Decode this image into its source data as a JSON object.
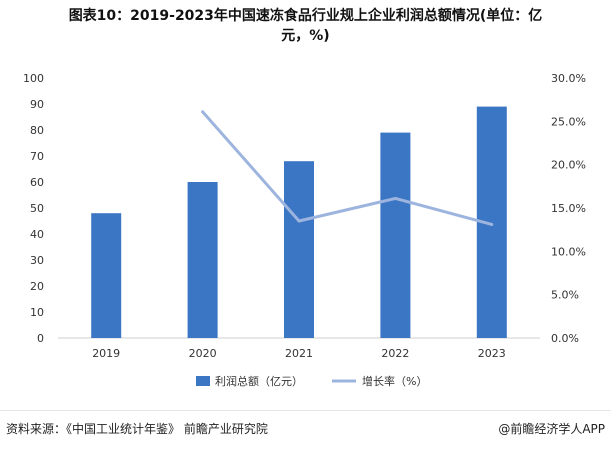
{
  "title_line1": "图表10：2019-2023年中国速冻食品行业规上企业利润总额情况(单位：亿",
  "title_line2": "元，%)",
  "source_text": "资料来源：《中国工业统计年鉴》 前瞻产业研究院",
  "credit_text": "@前瞻经济学人APP",
  "chart_data": {
    "type": "bar",
    "categories": [
      "2019",
      "2020",
      "2021",
      "2022",
      "2023"
    ],
    "series": [
      {
        "name": "利润总额（亿元）",
        "type": "bar",
        "axis": "left",
        "color": "#3b76c4",
        "values": [
          48,
          60,
          68,
          79,
          89
        ]
      },
      {
        "name": "增长率（%）",
        "type": "line",
        "axis": "right",
        "color": "#9db4df",
        "values": [
          null,
          26.1,
          13.5,
          16.1,
          13.1
        ]
      }
    ],
    "ylim_left": [
      0,
      100
    ],
    "yticks_left": [
      "0",
      "10",
      "20",
      "30",
      "40",
      "50",
      "60",
      "70",
      "80",
      "90",
      "100"
    ],
    "ylim_right": [
      0,
      30
    ],
    "yticks_right": [
      "0.0%",
      "5.0%",
      "10.0%",
      "15.0%",
      "20.0%",
      "25.0%",
      "30.0%"
    ],
    "grid": false,
    "legend_position": "bottom"
  }
}
